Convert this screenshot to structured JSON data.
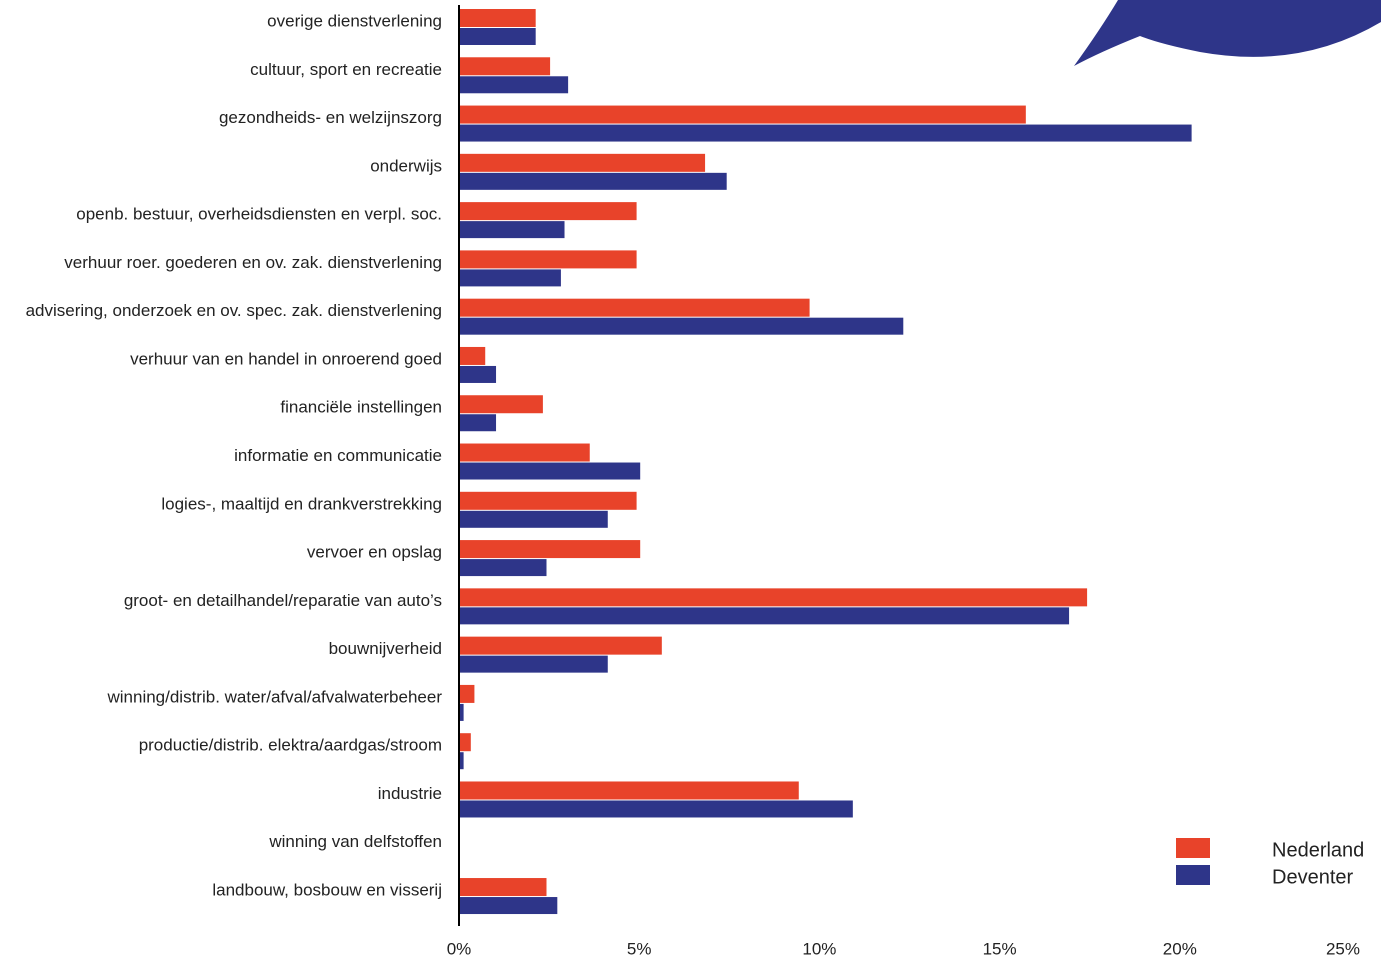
{
  "chart_data": {
    "type": "hbar",
    "categories": [
      "overige dienstverlening",
      "cultuur, sport en recreatie",
      "gezondheids- en welzijnszorg",
      "onderwijs",
      "openb. bestuur, overheidsdiensten en verpl. soc.",
      "verhuur roer. goederen en ov. zak. dienstverlening",
      "advisering, onderzoek en ov. spec. zak. dienstverlening",
      "verhuur van en handel in onroerend goed",
      "financiële instellingen",
      "informatie en communicatie",
      "logies-, maaltijd en drankverstrekking",
      "vervoer en opslag",
      "groot- en detailhandel/reparatie van auto’s",
      "bouwnijverheid",
      "winning/distrib. water/afval/afvalwaterbeheer",
      "productie/distrib. elektra/aardgas/stroom",
      "industrie",
      "winning van delfstoffen",
      "landbouw, bosbouw en visserij"
    ],
    "series": [
      {
        "name": "Nederland",
        "color": "#e8432a",
        "values": [
          2.1,
          2.5,
          15.7,
          6.8,
          4.9,
          4.9,
          9.7,
          0.7,
          2.3,
          3.6,
          4.9,
          5.0,
          17.4,
          5.6,
          0.4,
          0.3,
          9.4,
          0,
          2.4
        ]
      },
      {
        "name": "Deventer",
        "color": "#2e3589",
        "values": [
          2.1,
          3.0,
          20.3,
          7.4,
          2.9,
          2.8,
          12.3,
          1.0,
          1.0,
          5.0,
          4.1,
          2.4,
          16.9,
          4.1,
          0.1,
          0.1,
          10.9,
          0,
          2.7
        ]
      }
    ],
    "xlim": [
      0,
      25
    ],
    "xticks": [
      {
        "value": 0,
        "label": "0%"
      },
      {
        "value": 5,
        "label": "5%"
      },
      {
        "value": 10,
        "label": "10%"
      },
      {
        "value": 15,
        "label": "15%"
      },
      {
        "value": 20,
        "label": "20%"
      },
      {
        "value": 25,
        "label": "25%"
      }
    ],
    "legend": "bottom-right"
  }
}
